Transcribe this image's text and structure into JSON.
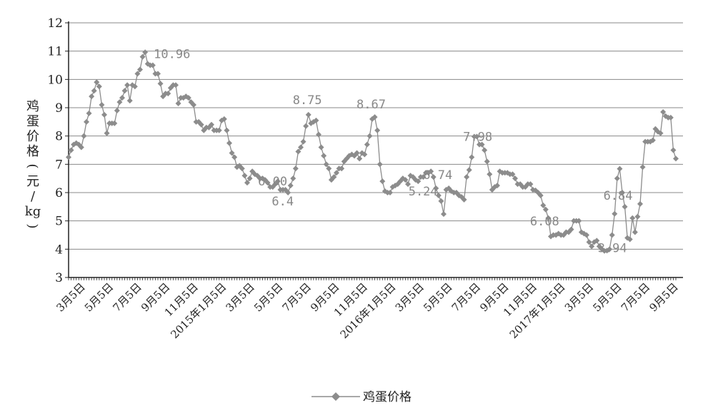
{
  "chart_data": {
    "type": "line",
    "ylabel_chars": [
      "鸡",
      "蛋",
      "价",
      "格",
      "(",
      "元",
      "/",
      "kg",
      ")"
    ],
    "ylim": [
      3,
      12
    ],
    "yticks": [
      "3",
      "4",
      "5",
      "6",
      "7",
      "8",
      "9",
      "10",
      "11",
      "12"
    ],
    "grid": true,
    "legend_position": "bottom-center",
    "color": "#8c8c8c",
    "x_labels": [
      "3月5日",
      "5月5日",
      "7月5日",
      "9月5日",
      "11月5日",
      "2015年1月5日",
      "3月5日",
      "5月5日",
      "7月5日",
      "9月5日",
      "11月5日",
      "2016年1月5日",
      "3月5日",
      "5月5日",
      "7月5日",
      "9月5日",
      "11月5日",
      "2017年1月5日",
      "3月5日",
      "5月5日",
      "7月5日",
      "9月5日"
    ],
    "series": [
      {
        "name": "鸡蛋价格",
        "values": [
          7.25,
          7.5,
          7.7,
          7.75,
          7.7,
          7.6,
          8.0,
          8.5,
          8.8,
          9.4,
          9.6,
          9.9,
          9.75,
          9.1,
          8.75,
          8.1,
          8.45,
          8.45,
          8.45,
          8.9,
          9.2,
          9.35,
          9.6,
          9.8,
          9.25,
          9.8,
          9.75,
          10.2,
          10.35,
          10.8,
          10.96,
          10.55,
          10.5,
          10.5,
          10.2,
          10.2,
          9.85,
          9.4,
          9.5,
          9.5,
          9.7,
          9.8,
          9.8,
          9.15,
          9.35,
          9.35,
          9.4,
          9.35,
          9.2,
          9.1,
          8.5,
          8.5,
          8.4,
          8.2,
          8.3,
          8.3,
          8.4,
          8.2,
          8.2,
          8.2,
          8.55,
          8.6,
          8.2,
          7.75,
          7.4,
          7.25,
          6.9,
          6.95,
          6.85,
          6.6,
          6.35,
          6.5,
          6.75,
          6.65,
          6.6,
          6.5,
          6.5,
          6.45,
          6.35,
          6.2,
          6.2,
          6.3,
          6.4,
          6.1,
          6.1,
          6.1,
          6.0,
          6.25,
          6.5,
          6.85,
          7.45,
          7.6,
          7.8,
          8.35,
          8.75,
          8.45,
          8.5,
          8.55,
          8.05,
          7.6,
          7.3,
          7.0,
          6.85,
          6.45,
          6.55,
          6.7,
          6.85,
          6.85,
          7.1,
          7.2,
          7.3,
          7.35,
          7.3,
          7.4,
          7.2,
          7.4,
          7.35,
          7.7,
          8.0,
          8.6,
          8.67,
          8.2,
          7.0,
          6.4,
          6.05,
          6.0,
          6.0,
          6.2,
          6.25,
          6.3,
          6.4,
          6.5,
          6.45,
          6.3,
          6.6,
          6.55,
          6.45,
          6.4,
          6.55,
          6.55,
          6.7,
          6.7,
          6.75,
          6.55,
          6.15,
          5.9,
          5.7,
          5.24,
          6.1,
          6.15,
          6.05,
          6.0,
          6.0,
          5.9,
          5.85,
          5.75,
          6.55,
          6.8,
          7.25,
          7.98,
          7.98,
          7.7,
          7.7,
          7.5,
          7.1,
          6.65,
          6.1,
          6.2,
          6.25,
          6.75,
          6.7,
          6.7,
          6.7,
          6.65,
          6.65,
          6.5,
          6.3,
          6.3,
          6.2,
          6.2,
          6.3,
          6.3,
          6.1,
          6.08,
          6.0,
          5.9,
          5.55,
          5.4,
          5.1,
          4.45,
          4.5,
          4.5,
          4.55,
          4.5,
          4.5,
          4.6,
          4.6,
          4.7,
          5.0,
          5.0,
          5.0,
          4.6,
          4.55,
          4.5,
          4.25,
          4.1,
          4.25,
          4.3,
          4.1,
          4.0,
          3.94,
          3.95,
          4.0,
          4.5,
          5.25,
          6.5,
          6.84,
          6.0,
          5.5,
          4.4,
          4.35,
          5.1,
          4.6,
          5.15,
          5.6,
          6.9,
          7.8,
          7.8,
          7.8,
          7.85,
          8.25,
          8.15,
          8.1,
          8.85,
          8.7,
          8.65,
          8.65,
          7.5,
          7.2
        ]
      }
    ],
    "annotations": [
      {
        "text": "10.96",
        "index": 30
      },
      {
        "text": "6.00",
        "index": 86
      },
      {
        "text": "6.4",
        "index": 83
      },
      {
        "text": "8.75",
        "index": 94
      },
      {
        "text": "8.67",
        "index": 119
      },
      {
        "text": "6.74",
        "index": 144
      },
      {
        "text": "5.24",
        "index": 150
      },
      {
        "text": "7.98",
        "index": 163
      },
      {
        "text": "6.08",
        "index": 187
      },
      {
        "text": "3.94",
        "index": 213
      },
      {
        "text": "6.84",
        "index": 218
      }
    ]
  }
}
